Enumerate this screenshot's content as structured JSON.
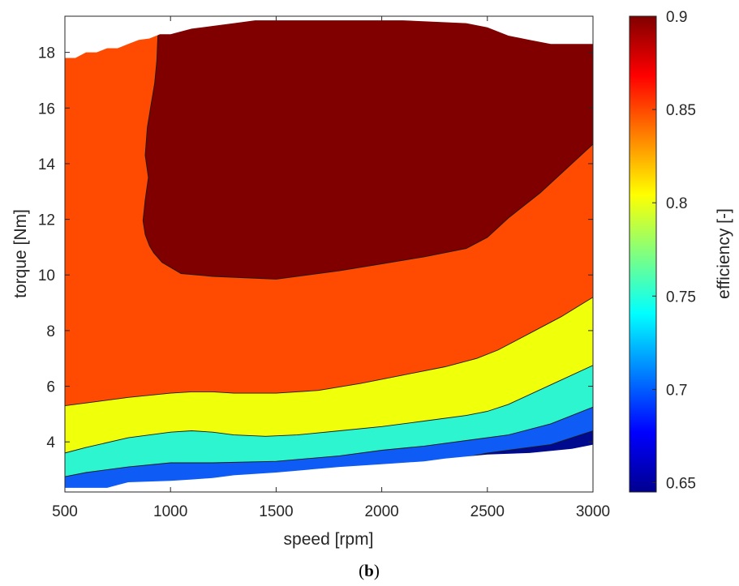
{
  "chart_data": {
    "type": "filled-contour",
    "xlabel": "speed [rpm]",
    "ylabel": "torque [Nm]",
    "colorbar_label": "efficiency [-]",
    "caption_open": "(",
    "caption_letter": "b",
    "caption_close": ")",
    "xlim": [
      500,
      3000
    ],
    "ylim": [
      2.2,
      19.3
    ],
    "x_ticks": [
      500,
      1000,
      1500,
      2000,
      2500,
      3000
    ],
    "y_ticks": [
      4,
      6,
      8,
      10,
      12,
      14,
      16,
      18
    ],
    "colorbar_range": [
      0.645,
      0.9
    ],
    "colorbar_ticks": [
      0.65,
      0.7,
      0.75,
      0.8,
      0.85,
      0.9
    ],
    "colormap": "jet",
    "grid": false,
    "region_colors": {
      "lt_0.70": "#000a8f",
      "0.70_0.75": "#0f5bf5",
      "0.75_0.80": "#2cf5d0",
      "0.80_0.85": "#f0ff0a",
      "0.85_0.90": "#ff4a02",
      "gt_0.90": "#800000"
    },
    "contour_levels": [
      {
        "level": 0.7,
        "x": [
          2300,
          2500,
          2800,
          3000
        ],
        "y": [
          3.3,
          3.6,
          3.9,
          4.4
        ]
      },
      {
        "level": 0.75,
        "x": [
          500,
          600,
          800,
          1000,
          1200,
          1500,
          1800,
          2000,
          2200,
          2400,
          2600,
          2800,
          3000
        ],
        "y": [
          2.75,
          2.9,
          3.1,
          3.25,
          3.25,
          3.3,
          3.5,
          3.7,
          3.85,
          4.05,
          4.25,
          4.65,
          5.25
        ]
      },
      {
        "level": 0.8,
        "x": [
          500,
          600,
          800,
          1000,
          1100,
          1200,
          1300,
          1450,
          1600,
          1800,
          2000,
          2200,
          2400,
          2500,
          2600,
          2800,
          3000
        ],
        "y": [
          3.6,
          3.8,
          4.15,
          4.35,
          4.4,
          4.35,
          4.25,
          4.2,
          4.25,
          4.4,
          4.55,
          4.75,
          4.95,
          5.1,
          5.35,
          6.05,
          6.75
        ]
      },
      {
        "level": 0.85,
        "x": [
          500,
          600,
          800,
          1000,
          1100,
          1200,
          1300,
          1500,
          1700,
          1900,
          2100,
          2300,
          2450,
          2550,
          2700,
          2850,
          3000
        ],
        "y": [
          5.3,
          5.4,
          5.6,
          5.75,
          5.8,
          5.8,
          5.75,
          5.75,
          5.85,
          6.1,
          6.4,
          6.7,
          7.0,
          7.3,
          7.9,
          8.5,
          9.2
        ]
      },
      {
        "level": 0.9,
        "x": [
          940,
          935,
          925,
          905,
          890,
          880,
          895,
          880,
          870,
          880,
          900,
          920,
          960,
          1050,
          1200,
          1500,
          1800,
          2000,
          2200,
          2400,
          2500,
          2600,
          2750,
          2900,
          3000
        ],
        "y": [
          18.6,
          17.7,
          16.9,
          16.0,
          15.3,
          14.3,
          13.5,
          12.7,
          11.95,
          11.45,
          11.05,
          10.8,
          10.45,
          10.05,
          9.95,
          9.85,
          10.15,
          10.4,
          10.65,
          10.95,
          11.35,
          12.05,
          12.95,
          14.0,
          14.7
        ]
      }
    ],
    "data_boundary": {
      "top": {
        "x": [
          500,
          550,
          600,
          650,
          700,
          750,
          800,
          850,
          900,
          950,
          1000,
          1100,
          1200,
          1300,
          1400,
          1500,
          1800,
          2100,
          2400,
          2500,
          2600,
          2700,
          2800,
          3000
        ],
        "y": [
          17.8,
          17.8,
          18.0,
          18.0,
          18.15,
          18.15,
          18.3,
          18.45,
          18.5,
          18.65,
          18.65,
          18.85,
          18.95,
          19.05,
          19.15,
          19.15,
          19.15,
          19.15,
          19.05,
          18.9,
          18.6,
          18.45,
          18.3,
          18.3
        ]
      },
      "bottom": {
        "x": [
          500,
          600,
          700,
          750,
          800,
          1000,
          1100,
          1200,
          1300,
          1500,
          1800,
          2000,
          2200,
          2300,
          2500,
          2700,
          2900,
          3000
        ],
        "y": [
          2.35,
          2.35,
          2.35,
          2.45,
          2.55,
          2.6,
          2.65,
          2.7,
          2.8,
          2.9,
          3.1,
          3.2,
          3.3,
          3.4,
          3.55,
          3.6,
          3.75,
          3.9
        ]
      }
    }
  }
}
